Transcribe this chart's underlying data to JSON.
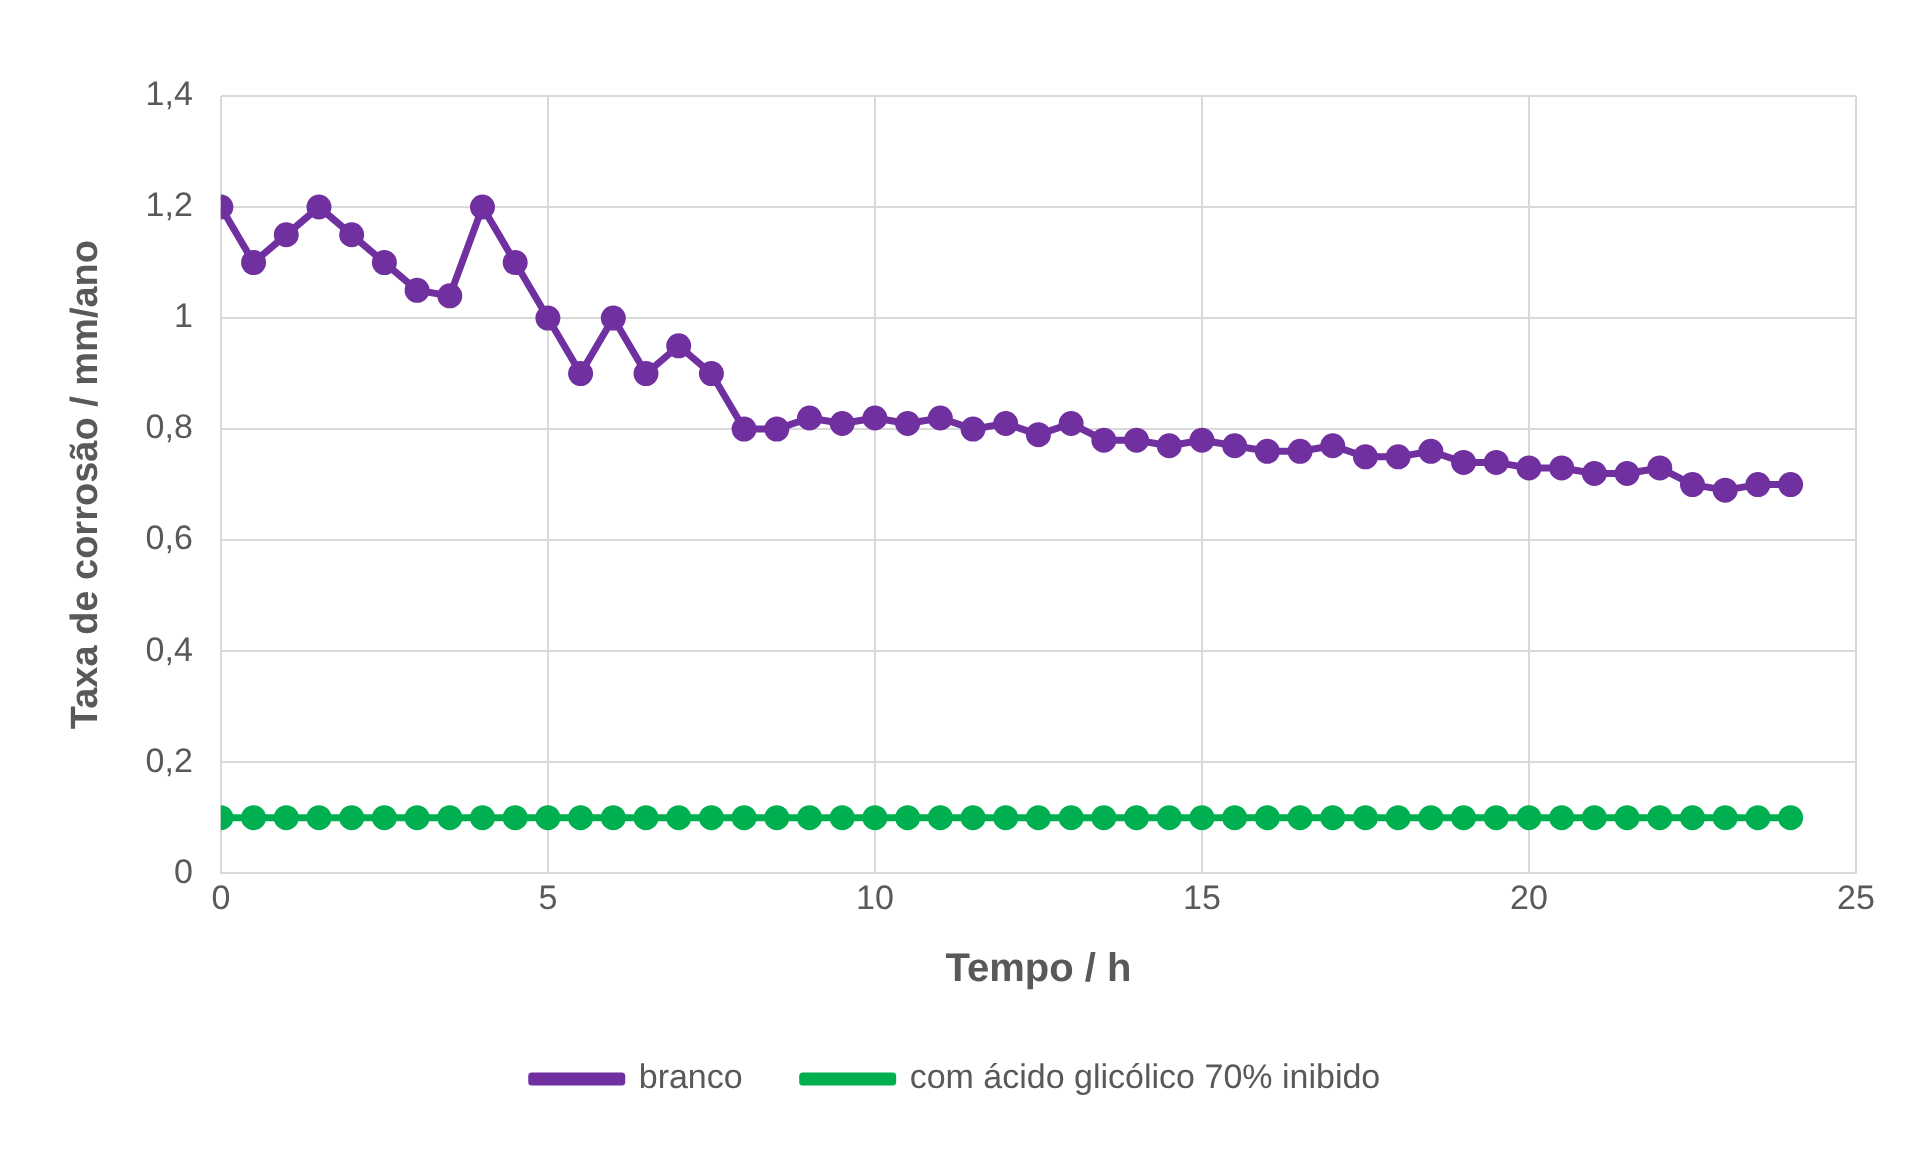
{
  "chart_data": {
    "type": "line",
    "xlabel": "Tempo / h",
    "ylabel": "Taxa de corrosão / mm/ano",
    "x": [
      0,
      0.5,
      1,
      1.5,
      2,
      2.5,
      3,
      3.5,
      4,
      4.5,
      5,
      5.5,
      6,
      6.5,
      7,
      7.5,
      8,
      8.5,
      9,
      9.5,
      10,
      10.5,
      11,
      11.5,
      12,
      12.5,
      13,
      13.5,
      14,
      14.5,
      15,
      15.5,
      16,
      16.5,
      17,
      17.5,
      18,
      18.5,
      19,
      19.5,
      20,
      20.5,
      21,
      21.5,
      22,
      22.5,
      23,
      23.5,
      24
    ],
    "series": [
      {
        "name": "branco",
        "color": "#7030a0",
        "values": [
          1.2,
          1.1,
          1.15,
          1.2,
          1.15,
          1.1,
          1.05,
          1.04,
          1.2,
          1.1,
          1.0,
          0.9,
          1.0,
          0.9,
          0.95,
          0.9,
          0.8,
          0.8,
          0.82,
          0.81,
          0.82,
          0.81,
          0.82,
          0.8,
          0.81,
          0.79,
          0.81,
          0.78,
          0.78,
          0.77,
          0.78,
          0.77,
          0.76,
          0.76,
          0.77,
          0.75,
          0.75,
          0.76,
          0.74,
          0.74,
          0.73,
          0.73,
          0.72,
          0.72,
          0.73,
          0.7,
          0.69,
          0.7,
          0.7
        ]
      },
      {
        "name": "com ácido glicólico 70% inibido",
        "color": "#00b050",
        "values": [
          0.1,
          0.1,
          0.1,
          0.1,
          0.1,
          0.1,
          0.1,
          0.1,
          0.1,
          0.1,
          0.1,
          0.1,
          0.1,
          0.1,
          0.1,
          0.1,
          0.1,
          0.1,
          0.1,
          0.1,
          0.1,
          0.1,
          0.1,
          0.1,
          0.1,
          0.1,
          0.1,
          0.1,
          0.1,
          0.1,
          0.1,
          0.1,
          0.1,
          0.1,
          0.1,
          0.1,
          0.1,
          0.1,
          0.1,
          0.1,
          0.1,
          0.1,
          0.1,
          0.1,
          0.1,
          0.1,
          0.1,
          0.1,
          0.1
        ]
      }
    ],
    "xlim": [
      0,
      25
    ],
    "xticks": [
      0,
      5,
      10,
      15,
      20,
      25
    ],
    "ylim": [
      0,
      1.4
    ],
    "yticks": [
      {
        "value": 0,
        "label": "0"
      },
      {
        "value": 0.2,
        "label": "0,2"
      },
      {
        "value": 0.4,
        "label": "0,4"
      },
      {
        "value": 0.6,
        "label": "0,6"
      },
      {
        "value": 0.8,
        "label": "0,8"
      },
      {
        "value": 1,
        "label": "1"
      },
      {
        "value": 1.2,
        "label": "1,2"
      },
      {
        "value": 1.4,
        "label": "1,4"
      }
    ],
    "grid": true,
    "legend": "bottom",
    "marker": "circle",
    "line_style": "solid"
  }
}
